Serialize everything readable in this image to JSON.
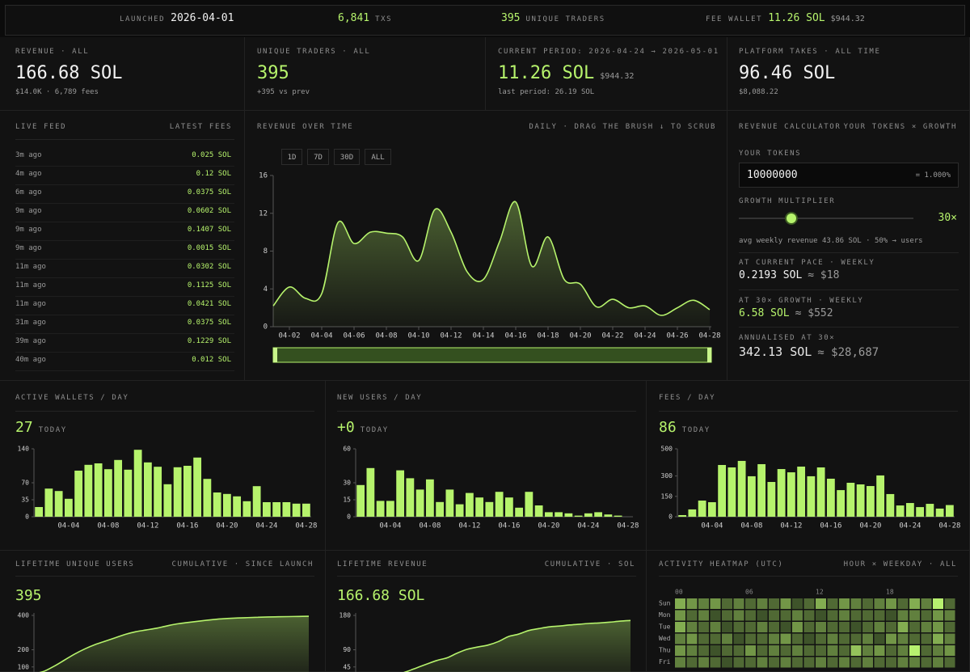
{
  "topbar": {
    "launched_label": "LAUNCHED",
    "launched": "2026-04-01",
    "txs": "6,841",
    "txs_label": "TXS",
    "traders": "395",
    "traders_label": "UNIQUE TRADERS",
    "fee_wallet_label": "FEE WALLET",
    "fee_wallet_sol": "11.26 SOL",
    "fee_wallet_usd": "$944.32"
  },
  "stats": [
    {
      "label": "REVENUE · ALL",
      "value": "166.68 SOL",
      "sub": "$14.0K · 6,789 fees"
    },
    {
      "label": "UNIQUE TRADERS · ALL",
      "value": "395",
      "sub": "+395 vs prev"
    },
    {
      "label": "CURRENT PERIOD: 2026-04-24 → 2026-05-01",
      "value": "11.26 SOL",
      "value_extra": "$944.32",
      "sub": "last period: 26.19 SOL"
    },
    {
      "label": "PLATFORM TAKES · ALL TIME",
      "value": "96.46 SOL",
      "sub": "$8,088.22"
    }
  ],
  "live_feed": {
    "title": "LIVE FEED",
    "subtitle": "LATEST FEES",
    "rows": [
      {
        "time": "3m ago",
        "amount": "0.025 SOL"
      },
      {
        "time": "4m ago",
        "amount": "0.12 SOL"
      },
      {
        "time": "6m ago",
        "amount": "0.0375 SOL"
      },
      {
        "time": "9m ago",
        "amount": "0.0602 SOL"
      },
      {
        "time": "9m ago",
        "amount": "0.1407 SOL"
      },
      {
        "time": "9m ago",
        "amount": "0.0015 SOL"
      },
      {
        "time": "11m ago",
        "amount": "0.0302 SOL"
      },
      {
        "time": "11m ago",
        "amount": "0.1125 SOL"
      },
      {
        "time": "11m ago",
        "amount": "0.0421 SOL"
      },
      {
        "time": "31m ago",
        "amount": "0.0375 SOL"
      },
      {
        "time": "39m ago",
        "amount": "0.1229 SOL"
      },
      {
        "time": "40m ago",
        "amount": "0.012 SOL"
      }
    ]
  },
  "revenue_chart": {
    "type": "area",
    "title": "REVENUE OVER TIME",
    "subtitle": "DAILY · DRAG THE BRUSH ↓ TO SCRUB",
    "buttons": [
      "1D",
      "7D",
      "30D",
      "ALL"
    ],
    "color": "#b6f36c",
    "categories": [
      null,
      "04-02",
      null,
      "04-04",
      null,
      "04-06",
      null,
      "04-08",
      null,
      "04-10",
      null,
      "04-12",
      null,
      "04-14",
      null,
      "04-16",
      null,
      "04-18",
      null,
      "04-20",
      null,
      "04-22",
      null,
      "04-24",
      null,
      "04-26",
      null,
      "04-28"
    ],
    "values": [
      2.2,
      4.2,
      3.0,
      3.5,
      11.0,
      8.8,
      10.0,
      9.9,
      9.5,
      7.0,
      12.4,
      10.0,
      5.8,
      5.0,
      9.0,
      13.2,
      6.4,
      9.5,
      5.0,
      4.5,
      2.1,
      2.9,
      2.0,
      2.2,
      1.2,
      2.0,
      2.8,
      1.8
    ],
    "ylim": [
      0,
      16
    ],
    "yticks": [
      0,
      4,
      8,
      12,
      16
    ]
  },
  "calculator": {
    "title": "REVENUE CALCULATOR",
    "subtitle": "YOUR TOKENS × GROWTH",
    "tokens_label": "YOUR TOKENS",
    "tokens_value": "10000000",
    "tokens_pct": "= 1.000%",
    "growth_label": "GROWTH MULTIPLIER",
    "growth_value": "30×",
    "avg_text": "avg weekly revenue 43.86 SOL · 50% → users",
    "pace_label": "AT CURRENT PACE · WEEKLY",
    "pace_sol": "0.2193 SOL",
    "pace_usd": "≈ $18",
    "growth_weekly_label": "AT 30× GROWTH · WEEKLY",
    "growth_sol": "6.58 SOL",
    "growth_usd": "≈ $552",
    "annual_label": "ANNUALISED AT 30×",
    "annual_sol": "342.13 SOL",
    "annual_usd": "≈ $28,687"
  },
  "mini_charts": [
    {
      "type": "bar",
      "title": "ACTIVE WALLETS / DAY",
      "value": "27",
      "value_label": "TODAY",
      "color": "#b6f36c",
      "categories": [
        null,
        null,
        null,
        "04-04",
        null,
        null,
        null,
        "04-08",
        null,
        null,
        null,
        "04-12",
        null,
        null,
        null,
        "04-16",
        null,
        null,
        null,
        "04-20",
        null,
        null,
        null,
        "04-24",
        null,
        null,
        null,
        "04-28"
      ],
      "values": [
        20,
        58,
        53,
        37,
        95,
        107,
        110,
        98,
        117,
        97,
        138,
        112,
        103,
        67,
        102,
        105,
        122,
        78,
        50,
        47,
        42,
        32,
        63,
        30,
        30,
        30,
        27,
        27
      ],
      "ylim": [
        0,
        140
      ],
      "yticks": [
        0,
        35,
        70,
        140
      ]
    },
    {
      "type": "bar",
      "title": "NEW USERS / DAY",
      "value": "+0",
      "value_label": "TODAY",
      "color": "#b6f36c",
      "categories": [
        null,
        null,
        null,
        "04-04",
        null,
        null,
        null,
        "04-08",
        null,
        null,
        null,
        "04-12",
        null,
        null,
        null,
        "04-16",
        null,
        null,
        null,
        "04-20",
        null,
        null,
        null,
        "04-24",
        null,
        null,
        null,
        "04-28"
      ],
      "values": [
        28,
        43,
        14,
        14,
        41,
        34,
        24,
        33,
        13,
        24,
        11,
        21,
        17,
        13,
        22,
        17,
        8,
        22,
        10,
        4,
        4,
        3,
        1,
        3,
        4,
        2,
        1,
        0
      ],
      "ylim": [
        0,
        60
      ],
      "yticks": [
        0,
        15,
        30,
        60
      ]
    },
    {
      "type": "bar",
      "title": "FEES / DAY",
      "value": "86",
      "value_label": "TODAY",
      "color": "#b6f36c",
      "categories": [
        null,
        null,
        null,
        "04-04",
        null,
        null,
        null,
        "04-08",
        null,
        null,
        null,
        "04-12",
        null,
        null,
        null,
        "04-16",
        null,
        null,
        null,
        "04-20",
        null,
        null,
        null,
        "04-24",
        null,
        null,
        null,
        "04-28"
      ],
      "values": [
        12,
        54,
        119,
        107,
        381,
        363,
        411,
        298,
        387,
        256,
        351,
        327,
        369,
        298,
        363,
        280,
        196,
        250,
        238,
        226,
        304,
        167,
        83,
        101,
        71,
        95,
        60,
        86
      ],
      "ylim": [
        0,
        500
      ],
      "yticks": [
        0,
        150,
        300,
        500
      ]
    }
  ],
  "line_charts": [
    {
      "type": "area",
      "title": "LIFETIME UNIQUE USERS",
      "subtitle": "CUMULATIVE · SINCE LAUNCH",
      "value": "395",
      "color": "#b6f36c",
      "values": [
        60,
        75,
        105,
        140,
        175,
        205,
        230,
        250,
        270,
        290,
        305,
        315,
        325,
        338,
        350,
        358,
        365,
        372,
        378,
        382,
        385,
        387,
        389,
        391,
        392,
        393,
        394,
        395
      ],
      "ylim": [
        0,
        400
      ],
      "yticks": [
        100,
        200,
        400
      ]
    },
    {
      "type": "area",
      "title": "LIFETIME REVENUE",
      "subtitle": "CUMULATIVE · SOL",
      "value": "166.68 SOL",
      "color": "#b6f36c",
      "values": [
        2.2,
        6.4,
        9.4,
        12.9,
        23.9,
        32.7,
        42.7,
        52.6,
        62.1,
        69.1,
        81.5,
        91.5,
        97.3,
        102.3,
        111.3,
        124.5,
        130.9,
        140.4,
        145.4,
        149.9,
        152.0,
        154.9,
        156.9,
        159.1,
        160.3,
        162.3,
        165.1,
        166.68
      ],
      "ylim": [
        0,
        180
      ],
      "yticks": [
        45,
        90,
        180
      ]
    }
  ],
  "heatmap": {
    "title": "ACTIVITY HEATMAP (UTC)",
    "subtitle": "HOUR × WEEKDAY · ALL",
    "rows": [
      "Sun",
      "Mon",
      "Tue",
      "Wed",
      "Thu",
      "Fri"
    ],
    "xticks": [
      {
        "value": 0,
        "label": "00"
      },
      {
        "value": 6,
        "label": "06"
      },
      {
        "value": 12,
        "label": "12"
      },
      {
        "value": 18,
        "label": "18"
      }
    ],
    "values": [
      [
        6,
        5,
        4,
        5,
        3,
        4,
        3,
        4,
        3,
        5,
        2,
        3,
        6,
        3,
        5,
        4,
        3,
        4,
        5,
        3,
        6,
        4,
        9,
        3
      ],
      [
        5,
        3,
        4,
        2,
        3,
        4,
        3,
        2,
        3,
        3,
        4,
        3,
        2,
        3,
        4,
        3,
        3,
        3,
        2,
        4,
        4,
        3,
        5,
        4
      ],
      [
        6,
        4,
        3,
        4,
        2,
        3,
        3,
        4,
        3,
        2,
        5,
        3,
        4,
        3,
        3,
        2,
        3,
        4,
        3,
        6,
        3,
        4,
        5,
        3
      ],
      [
        4,
        5,
        3,
        3,
        4,
        2,
        3,
        3,
        4,
        5,
        3,
        2,
        3,
        4,
        3,
        3,
        4,
        2,
        5,
        4,
        3,
        3,
        6,
        4
      ],
      [
        5,
        4,
        3,
        2,
        3,
        3,
        5,
        3,
        4,
        3,
        4,
        3,
        3,
        4,
        3,
        7,
        4,
        5,
        3,
        4,
        9,
        3,
        4,
        5
      ],
      [
        4,
        3,
        4,
        3,
        2,
        3,
        3,
        4,
        3,
        4,
        3,
        3,
        4,
        3,
        4,
        3,
        4,
        3,
        3,
        4,
        4,
        3,
        4,
        3
      ]
    ]
  }
}
